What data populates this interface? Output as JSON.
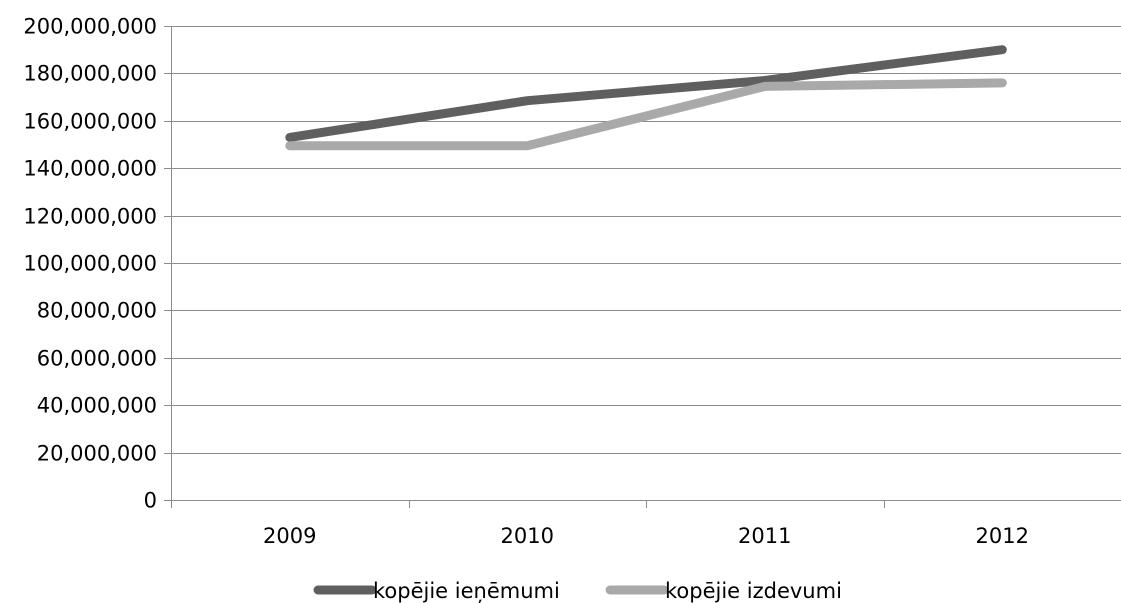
{
  "chart_data": {
    "type": "line",
    "title": "",
    "xlabel": "",
    "ylabel": "",
    "categories": [
      "2009",
      "2010",
      "2011",
      "2012"
    ],
    "ylim": [
      0,
      200000000
    ],
    "yticks": [
      0,
      20000000,
      40000000,
      60000000,
      80000000,
      100000000,
      120000000,
      140000000,
      160000000,
      180000000,
      200000000
    ],
    "ytick_labels": [
      "0",
      "20,000,000",
      "40,000,000",
      "60,000,000",
      "80,000,000",
      "100,000,000",
      "120,000,000",
      "140,000,000",
      "160,000,000",
      "180,000,000",
      "200,000,000"
    ],
    "grid": true,
    "legend_position": "bottom",
    "series": [
      {
        "name": "kopējie ieņēmumi",
        "color": "#5f5f5f",
        "values": [
          153000000,
          168500000,
          177000000,
          190000000
        ]
      },
      {
        "name": "kopējie izdevumi",
        "color": "#a9a9a9",
        "values": [
          149500000,
          149500000,
          174500000,
          176000000
        ]
      }
    ]
  }
}
